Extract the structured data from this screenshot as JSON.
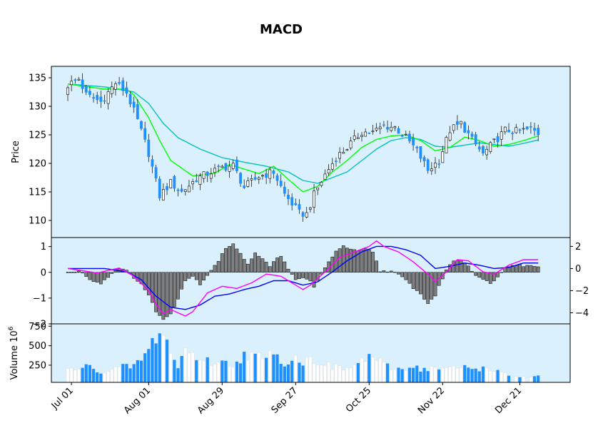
{
  "chart_data": [
    {
      "type": "candlestick",
      "title": "MACD",
      "ylabel": "Price",
      "ylim": [
        107,
        137
      ],
      "yticks": [
        110,
        115,
        120,
        125,
        130,
        135
      ],
      "grid": false,
      "colors": {
        "up": "#ffffff",
        "down": "#1e90ff",
        "edge": "#000000",
        "background": "#daf0fc",
        "fast_ma": "#00ff00",
        "slow_ma": "#00c0c0"
      },
      "x_start": "2021-06-30",
      "xticks": [
        "Jul 01",
        "Aug 01",
        "Aug 29",
        "Sep 27",
        "Oct 25",
        "Nov 22",
        "Dec 21"
      ],
      "xtick_positions": [
        1,
        22,
        42,
        62,
        82,
        102,
        123
      ],
      "close_anchors": [
        [
          0,
          133.7
        ],
        [
          3,
          134.8
        ],
        [
          5,
          132.0
        ],
        [
          9,
          130.8
        ],
        [
          13,
          134.1
        ],
        [
          16,
          132.4
        ],
        [
          19,
          127.5
        ],
        [
          22,
          121.8
        ],
        [
          25,
          114.3
        ],
        [
          28,
          116.6
        ],
        [
          31,
          115.0
        ],
        [
          35,
          117.3
        ],
        [
          38,
          118.2
        ],
        [
          42,
          119.3
        ],
        [
          45,
          119.6
        ],
        [
          48,
          115.8
        ],
        [
          52,
          117.7
        ],
        [
          56,
          118.5
        ],
        [
          59,
          114.6
        ],
        [
          63,
          111.3
        ],
        [
          65,
          111.1
        ],
        [
          67,
          114.5
        ],
        [
          70,
          118.0
        ],
        [
          73,
          121.0
        ],
        [
          76,
          122.8
        ],
        [
          80,
          125.5
        ],
        [
          83,
          125.4
        ],
        [
          86,
          126.6
        ],
        [
          89,
          126.3
        ],
        [
          92,
          124.5
        ],
        [
          95,
          122.2
        ],
        [
          98,
          118.8
        ],
        [
          101,
          120.5
        ],
        [
          104,
          125.8
        ],
        [
          107,
          127.0
        ],
        [
          110,
          124.1
        ],
        [
          113,
          121.6
        ],
        [
          116,
          123.7
        ],
        [
          119,
          125.8
        ],
        [
          122,
          125.6
        ],
        [
          126,
          126.0
        ],
        [
          128,
          125.3
        ]
      ],
      "fast_ma_anchors": [
        [
          0,
          133.9
        ],
        [
          10,
          133.0
        ],
        [
          16,
          133.0
        ],
        [
          18,
          132.0
        ],
        [
          22,
          128.0
        ],
        [
          25,
          124.0
        ],
        [
          28,
          120.5
        ],
        [
          34,
          117.8
        ],
        [
          40,
          118.3
        ],
        [
          44,
          119.8
        ],
        [
          48,
          119.0
        ],
        [
          52,
          118.2
        ],
        [
          56,
          119.5
        ],
        [
          60,
          117.2
        ],
        [
          64,
          115.0
        ],
        [
          68,
          116.0
        ],
        [
          72,
          118.5
        ],
        [
          76,
          120.5
        ],
        [
          80,
          122.8
        ],
        [
          84,
          124.2
        ],
        [
          88,
          124.8
        ],
        [
          92,
          125.0
        ],
        [
          96,
          124.0
        ],
        [
          100,
          122.2
        ],
        [
          104,
          122.8
        ],
        [
          108,
          124.6
        ],
        [
          112,
          124.0
        ],
        [
          116,
          123.0
        ],
        [
          120,
          123.3
        ],
        [
          124,
          124.0
        ],
        [
          128,
          124.8
        ]
      ],
      "slow_ma_anchors": [
        [
          0,
          133.9
        ],
        [
          10,
          133.4
        ],
        [
          18,
          132.5
        ],
        [
          22,
          130.5
        ],
        [
          26,
          127.0
        ],
        [
          30,
          124.5
        ],
        [
          36,
          122.5
        ],
        [
          42,
          121.0
        ],
        [
          48,
          120.2
        ],
        [
          54,
          119.5
        ],
        [
          60,
          118.5
        ],
        [
          64,
          117.0
        ],
        [
          68,
          116.5
        ],
        [
          72,
          117.5
        ],
        [
          76,
          118.5
        ],
        [
          80,
          120.5
        ],
        [
          84,
          122.5
        ],
        [
          88,
          124.0
        ],
        [
          92,
          124.5
        ],
        [
          96,
          124.2
        ],
        [
          100,
          123.0
        ],
        [
          104,
          122.8
        ],
        [
          108,
          123.2
        ],
        [
          112,
          123.6
        ],
        [
          116,
          123.3
        ],
        [
          120,
          123.0
        ],
        [
          124,
          123.5
        ],
        [
          128,
          124.1
        ]
      ]
    },
    {
      "type": "macd",
      "histogram_ylim": [
        -2.0,
        1.35
      ],
      "histogram_yticks": [
        -2,
        -1,
        0,
        1
      ],
      "lines_ylim": [
        -5,
        2.8
      ],
      "lines_yticks": [
        -4,
        -2,
        0,
        2
      ],
      "colors": {
        "histogram": "#808080",
        "macd": "#ff00ff",
        "signal": "#0000ff"
      },
      "histogram_anchors": [
        [
          0,
          0
        ],
        [
          1,
          0
        ],
        [
          2,
          0
        ],
        [
          3,
          0.08
        ],
        [
          5,
          -0.15
        ],
        [
          7,
          -0.35
        ],
        [
          9,
          -0.42
        ],
        [
          10,
          -0.3
        ],
        [
          12,
          -0.05
        ],
        [
          13,
          0.15
        ],
        [
          14,
          0.18
        ],
        [
          16,
          0.05
        ],
        [
          18,
          -0.2
        ],
        [
          20,
          -0.45
        ],
        [
          22,
          -0.9
        ],
        [
          24,
          -1.5
        ],
        [
          26,
          -1.85
        ],
        [
          28,
          -1.6
        ],
        [
          30,
          -1.0
        ],
        [
          32,
          -0.3
        ],
        [
          34,
          -0.15
        ],
        [
          36,
          -0.45
        ],
        [
          37,
          -0.3
        ],
        [
          39,
          0.1
        ],
        [
          41,
          0.45
        ],
        [
          43,
          0.95
        ],
        [
          45,
          1.1
        ],
        [
          47,
          0.7
        ],
        [
          49,
          0.35
        ],
        [
          51,
          0.75
        ],
        [
          53,
          0.55
        ],
        [
          55,
          0.2
        ],
        [
          57,
          0.6
        ],
        [
          58,
          0.65
        ],
        [
          60,
          0.1
        ],
        [
          62,
          -0.3
        ],
        [
          64,
          -0.2
        ],
        [
          66,
          -0.35
        ],
        [
          67,
          -0.55
        ],
        [
          69,
          -0.1
        ],
        [
          71,
          0.4
        ],
        [
          73,
          0.85
        ],
        [
          75,
          1.0
        ],
        [
          77,
          0.9
        ],
        [
          79,
          0.8
        ],
        [
          81,
          0.9
        ],
        [
          83,
          0.8
        ],
        [
          85,
          0.05
        ],
        [
          87,
          0.05
        ],
        [
          88,
          0.05
        ],
        [
          90,
          -0.1
        ],
        [
          92,
          -0.3
        ],
        [
          94,
          -0.6
        ],
        [
          96,
          -0.85
        ],
        [
          98,
          -1.2
        ],
        [
          100,
          -0.9
        ],
        [
          101,
          -0.55
        ],
        [
          103,
          0.1
        ],
        [
          105,
          0.45
        ],
        [
          107,
          0.5
        ],
        [
          109,
          0.25
        ],
        [
          111,
          -0.1
        ],
        [
          113,
          -0.3
        ],
        [
          115,
          -0.4
        ],
        [
          117,
          -0.2
        ],
        [
          119,
          0.2
        ],
        [
          121,
          0.3
        ],
        [
          123,
          0.3
        ],
        [
          124,
          0.25
        ]
      ],
      "macd_anchors": [
        [
          0,
          0
        ],
        [
          8,
          -0.4
        ],
        [
          14,
          0.05
        ],
        [
          18,
          -0.7
        ],
        [
          22,
          -2.0
        ],
        [
          24,
          -3.2
        ],
        [
          26,
          -4.1
        ],
        [
          28,
          -3.7
        ],
        [
          32,
          -4.3
        ],
        [
          34,
          -3.9
        ],
        [
          38,
          -2.2
        ],
        [
          42,
          -1.6
        ],
        [
          46,
          -1.8
        ],
        [
          50,
          -1.3
        ],
        [
          54,
          -0.5
        ],
        [
          58,
          -0.7
        ],
        [
          61,
          -1.3
        ],
        [
          64,
          -1.9
        ],
        [
          66,
          -1.5
        ],
        [
          70,
          -0.3
        ],
        [
          74,
          1.0
        ],
        [
          78,
          1.5
        ],
        [
          82,
          2.0
        ],
        [
          84,
          2.5
        ],
        [
          86,
          2.0
        ],
        [
          90,
          1.5
        ],
        [
          94,
          0.6
        ],
        [
          98,
          -0.5
        ],
        [
          100,
          -1.2
        ],
        [
          103,
          -0.3
        ],
        [
          106,
          0.8
        ],
        [
          109,
          0.7
        ],
        [
          113,
          -0.3
        ],
        [
          116,
          -0.5
        ],
        [
          120,
          0.3
        ],
        [
          124,
          0.8
        ]
      ],
      "signal_anchors": [
        [
          0,
          0
        ],
        [
          10,
          0
        ],
        [
          16,
          -0.3
        ],
        [
          20,
          -1.0
        ],
        [
          24,
          -2.5
        ],
        [
          28,
          -3.5
        ],
        [
          32,
          -3.7
        ],
        [
          36,
          -3.3
        ],
        [
          40,
          -2.5
        ],
        [
          44,
          -2.3
        ],
        [
          48,
          -1.9
        ],
        [
          52,
          -1.6
        ],
        [
          56,
          -1.1
        ],
        [
          60,
          -1.1
        ],
        [
          64,
          -1.5
        ],
        [
          68,
          -1.2
        ],
        [
          72,
          -0.3
        ],
        [
          76,
          0.7
        ],
        [
          80,
          1.5
        ],
        [
          84,
          2.0
        ],
        [
          88,
          2.0
        ],
        [
          92,
          1.7
        ],
        [
          96,
          1.2
        ],
        [
          100,
          0.0
        ],
        [
          104,
          0.2
        ],
        [
          108,
          0.5
        ],
        [
          112,
          0.3
        ],
        [
          116,
          0.0
        ],
        [
          120,
          0.1
        ],
        [
          124,
          0.5
        ]
      ]
    },
    {
      "type": "bar",
      "ylabel": "Volume",
      "ylabel_exponent": "10^6",
      "ylim": [
        30,
        780
      ],
      "yticks": [
        250,
        500,
        750
      ],
      "volume_anchors": [
        [
          0,
          200
        ],
        [
          2,
          180
        ],
        [
          4,
          240
        ],
        [
          6,
          220
        ],
        [
          10,
          160
        ],
        [
          14,
          220
        ],
        [
          18,
          240
        ],
        [
          20,
          330
        ],
        [
          22,
          440
        ],
        [
          24,
          620
        ],
        [
          26,
          700
        ],
        [
          28,
          400
        ],
        [
          30,
          220
        ],
        [
          32,
          480
        ],
        [
          34,
          380
        ],
        [
          38,
          300
        ],
        [
          42,
          280
        ],
        [
          45,
          260
        ],
        [
          48,
          380
        ],
        [
          52,
          360
        ],
        [
          54,
          300
        ],
        [
          56,
          480
        ],
        [
          58,
          280
        ],
        [
          60,
          300
        ],
        [
          62,
          350
        ],
        [
          64,
          290
        ],
        [
          66,
          330
        ],
        [
          68,
          300
        ],
        [
          70,
          280
        ],
        [
          72,
          220
        ],
        [
          74,
          230
        ],
        [
          76,
          200
        ],
        [
          80,
          300
        ],
        [
          82,
          380
        ],
        [
          84,
          320
        ],
        [
          86,
          250
        ],
        [
          88,
          210
        ],
        [
          90,
          200
        ],
        [
          94,
          240
        ],
        [
          96,
          200
        ],
        [
          100,
          210
        ],
        [
          102,
          210
        ],
        [
          104,
          200
        ],
        [
          108,
          230
        ],
        [
          110,
          210
        ],
        [
          112,
          210
        ],
        [
          116,
          200
        ],
        [
          118,
          140
        ],
        [
          120,
          120
        ],
        [
          122,
          110
        ],
        [
          124,
          100
        ],
        [
          126,
          100
        ]
      ]
    }
  ]
}
